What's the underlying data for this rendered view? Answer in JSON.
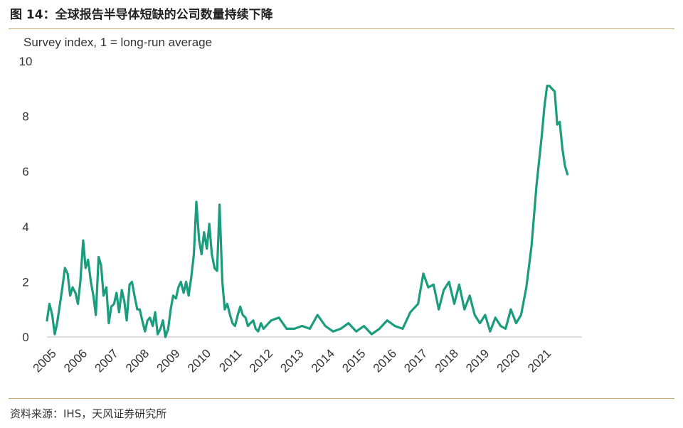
{
  "header": {
    "title": "图 14：全球报告半导体短缺的公司数量持续下降"
  },
  "footer": {
    "source": "资料来源：IHS，天风证券研究所"
  },
  "chart_data": {
    "type": "line",
    "subtitle": "Survey index, 1 = long-run average",
    "xlabel": "",
    "ylabel": "",
    "ylim": [
      0,
      10
    ],
    "yticks": [
      0,
      2,
      4,
      6,
      8,
      10
    ],
    "xlim": [
      2005,
      2022.3
    ],
    "xticks": [
      "2005",
      "2006",
      "2007",
      "2008",
      "2009",
      "2010",
      "2011",
      "2012",
      "2013",
      "2014",
      "2015",
      "2016",
      "2017",
      "2018",
      "2019",
      "2020",
      "2021"
    ],
    "grid": false,
    "line_color": "#1a9c7d",
    "series": [
      {
        "x": [
          2005.0,
          2005.08,
          2005.17,
          2005.25,
          2005.33,
          2005.42,
          2005.5,
          2005.58,
          2005.67,
          2005.75,
          2005.83,
          2005.92,
          2006.0,
          2006.08,
          2006.17,
          2006.25,
          2006.33,
          2006.42,
          2006.5,
          2006.58,
          2006.67,
          2006.75,
          2006.83,
          2006.92,
          2007.0,
          2007.08,
          2007.17,
          2007.25,
          2007.33,
          2007.42,
          2007.5,
          2007.58,
          2007.67,
          2007.75,
          2007.83,
          2007.92,
          2008.0,
          2008.08,
          2008.17,
          2008.25,
          2008.33,
          2008.42,
          2008.5,
          2008.58,
          2008.67,
          2008.75,
          2008.83,
          2008.92,
          2009.0,
          2009.08,
          2009.17,
          2009.25,
          2009.33,
          2009.42,
          2009.5,
          2009.58,
          2009.67,
          2009.75,
          2009.83,
          2009.92,
          2010.0,
          2010.08,
          2010.17,
          2010.25,
          2010.33,
          2010.42,
          2010.5,
          2010.58,
          2010.67,
          2010.75,
          2010.83,
          2010.92,
          2011.0,
          2011.08,
          2011.17,
          2011.25,
          2011.33,
          2011.42,
          2011.5,
          2011.58,
          2011.67,
          2011.75,
          2011.83,
          2011.92,
          2012.0,
          2012.25,
          2012.5,
          2012.75,
          2013.0,
          2013.25,
          2013.5,
          2013.75,
          2014.0,
          2014.25,
          2014.5,
          2014.75,
          2015.0,
          2015.25,
          2015.5,
          2015.75,
          2016.0,
          2016.25,
          2016.5,
          2016.75,
          2017.0,
          2017.17,
          2017.33,
          2017.5,
          2017.67,
          2017.83,
          2018.0,
          2018.17,
          2018.33,
          2018.5,
          2018.67,
          2018.83,
          2019.0,
          2019.17,
          2019.33,
          2019.5,
          2019.67,
          2019.83,
          2020.0,
          2020.17,
          2020.33,
          2020.5,
          2020.67,
          2020.83,
          2021.0,
          2021.08,
          2021.17,
          2021.25,
          2021.33,
          2021.42,
          2021.5,
          2021.58,
          2021.67,
          2021.75,
          2021.83
        ],
        "y": [
          0.6,
          1.2,
          0.8,
          0.1,
          0.5,
          1.2,
          1.8,
          2.5,
          2.3,
          1.5,
          1.8,
          1.6,
          1.2,
          2.0,
          3.5,
          2.5,
          2.8,
          2.0,
          1.5,
          0.8,
          2.9,
          2.6,
          1.5,
          1.8,
          0.5,
          1.1,
          1.2,
          1.6,
          0.9,
          1.7,
          1.3,
          0.6,
          1.9,
          2.0,
          1.5,
          1.0,
          1.0,
          0.6,
          0.2,
          0.6,
          0.7,
          0.4,
          0.9,
          0.1,
          0.3,
          0.6,
          0.0,
          0.3,
          1.0,
          1.5,
          1.4,
          1.8,
          2.0,
          1.6,
          2.0,
          1.5,
          2.2,
          3.0,
          4.9,
          3.5,
          3.0,
          3.8,
          3.2,
          4.1,
          3.0,
          2.5,
          2.4,
          4.8,
          2.0,
          1.0,
          1.2,
          0.8,
          0.5,
          0.4,
          0.8,
          1.1,
          0.8,
          0.7,
          0.4,
          0.5,
          0.6,
          0.3,
          0.2,
          0.5,
          0.3,
          0.6,
          0.7,
          0.3,
          0.3,
          0.4,
          0.3,
          0.8,
          0.4,
          0.2,
          0.3,
          0.5,
          0.2,
          0.4,
          0.1,
          0.3,
          0.6,
          0.4,
          0.3,
          0.9,
          1.2,
          2.3,
          1.8,
          1.9,
          1.0,
          1.7,
          2.0,
          1.2,
          1.9,
          1.0,
          1.5,
          0.8,
          0.5,
          0.8,
          0.2,
          0.7,
          0.4,
          0.3,
          1.0,
          0.5,
          0.8,
          1.8,
          3.3,
          5.5,
          7.3,
          8.3,
          9.1,
          9.1,
          9.0,
          8.9,
          7.7,
          7.8,
          6.8,
          6.2,
          5.9
        ]
      }
    ]
  }
}
